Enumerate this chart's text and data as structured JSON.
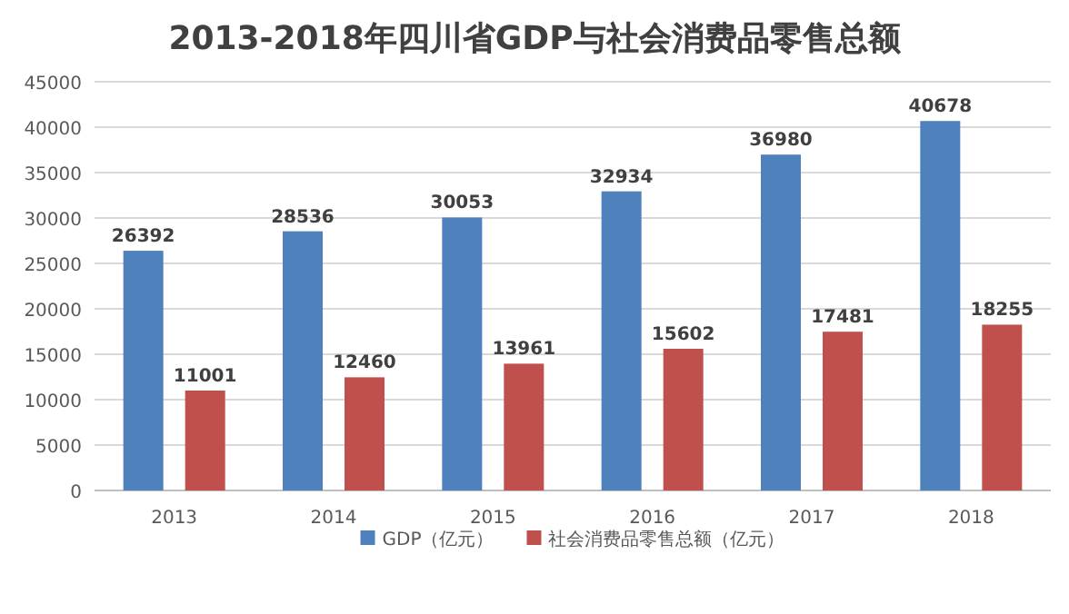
{
  "chart_data": {
    "type": "bar",
    "title": "2013-2018年四川省GDP与社会消费品零售总额",
    "categories": [
      "2013",
      "2014",
      "2015",
      "2016",
      "2017",
      "2018"
    ],
    "series": [
      {
        "name": "GDP（亿元）",
        "color": "#4f81bd",
        "values": [
          26392,
          28536,
          30053,
          32934,
          36980,
          40678
        ]
      },
      {
        "name": "社会消费品零售总额（亿元）",
        "color": "#c0504d",
        "values": [
          11001,
          12460,
          13961,
          15602,
          17481,
          18255
        ]
      }
    ],
    "ylim": [
      0,
      45000
    ],
    "yticks": [
      0,
      5000,
      10000,
      15000,
      20000,
      25000,
      30000,
      35000,
      40000,
      45000
    ],
    "grid": "y",
    "legend": "bottom",
    "data_labels": true
  }
}
